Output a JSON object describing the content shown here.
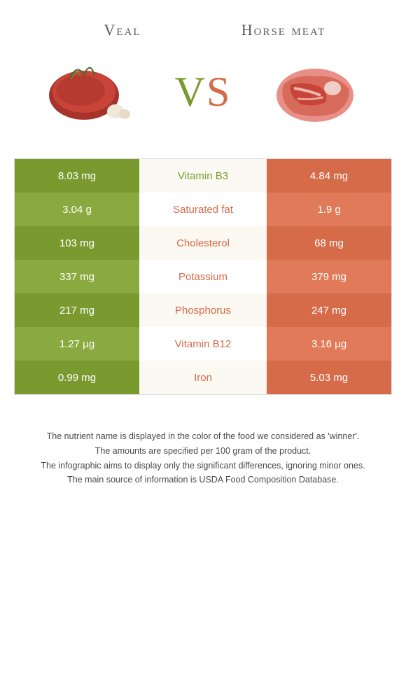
{
  "foods": {
    "left": {
      "name": "Veal",
      "color": "#7a9a2f",
      "alt_color": "#8aa93f"
    },
    "right": {
      "name": "Horse meat",
      "color": "#d66b4a",
      "alt_color": "#e07a58"
    }
  },
  "vs": {
    "v": "V",
    "s": "S"
  },
  "rows": [
    {
      "nutrient": "Vitamin B3",
      "left": "8.03 mg",
      "right": "4.84 mg",
      "winner": "left"
    },
    {
      "nutrient": "Saturated fat",
      "left": "3.04 g",
      "right": "1.9 g",
      "winner": "right"
    },
    {
      "nutrient": "Cholesterol",
      "left": "103 mg",
      "right": "68 mg",
      "winner": "right"
    },
    {
      "nutrient": "Potassium",
      "left": "337 mg",
      "right": "379 mg",
      "winner": "right"
    },
    {
      "nutrient": "Phosphorus",
      "left": "217 mg",
      "right": "247 mg",
      "winner": "right"
    },
    {
      "nutrient": "Vitamin B12",
      "left": "1.27 µg",
      "right": "3.16 µg",
      "winner": "right"
    },
    {
      "nutrient": "Iron",
      "left": "0.99 mg",
      "right": "5.03 mg",
      "winner": "right"
    }
  ],
  "footer": [
    "The nutrient name is displayed in the color of the food we considered as 'winner'.",
    "The amounts are specified per 100 gram of the product.",
    "The infographic aims to display only the significant differences, ignoring minor ones.",
    "The main source of information is USDA Food Composition Database."
  ],
  "colors": {
    "left_win": "#7a9a2f",
    "right_win": "#d66b4a",
    "text": "#5a5a5a",
    "footer_text": "#4a4a4a"
  }
}
